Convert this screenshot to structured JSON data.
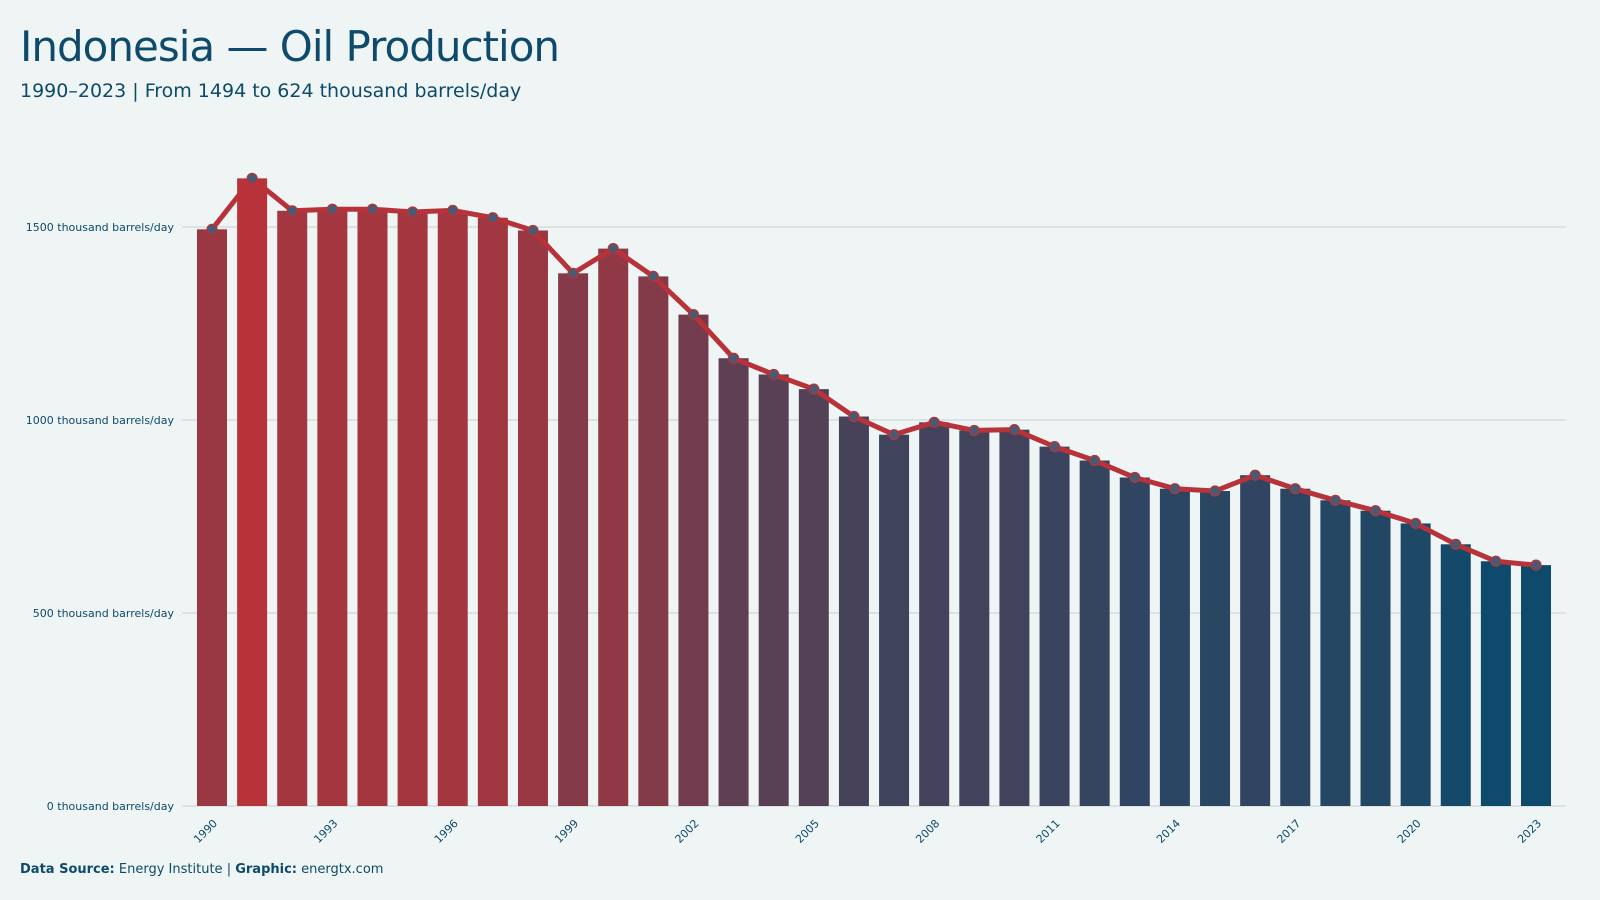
{
  "header": {
    "title": "Indonesia — Oil Production",
    "subtitle": "1990–2023 | From 1494 to 624 thousand barrels/day"
  },
  "footer": {
    "source_label": "Data Source:",
    "source_value": "Energy Institute",
    "separator": "|",
    "graphic_label": "Graphic:",
    "graphic_value": "energtx.com"
  },
  "colors": {
    "background": "#eff5f4",
    "text": "#0d4a6b",
    "line": "#b83339",
    "bar_high": "#b83339",
    "bar_low": "#0d4a6b",
    "marker": "#4a5a72",
    "grid": "#c9cfd2"
  },
  "chart_data": {
    "type": "bar",
    "unit": "thousand barrels/day",
    "x": [
      1990,
      1991,
      1992,
      1993,
      1994,
      1995,
      1996,
      1997,
      1998,
      1999,
      2000,
      2001,
      2002,
      2003,
      2004,
      2005,
      2006,
      2007,
      2008,
      2009,
      2010,
      2011,
      2012,
      2013,
      2014,
      2015,
      2016,
      2017,
      2018,
      2019,
      2020,
      2021,
      2022,
      2023
    ],
    "values": [
      1494,
      1626,
      1542,
      1546,
      1546,
      1539,
      1543,
      1524,
      1491,
      1380,
      1444,
      1372,
      1273,
      1160,
      1118,
      1080,
      1009,
      962,
      994,
      973,
      975,
      931,
      895,
      851,
      822,
      816,
      857,
      822,
      792,
      765,
      732,
      678,
      634,
      624
    ],
    "xticks": [
      "1990",
      "1993",
      "1996",
      "1999",
      "2002",
      "2005",
      "2008",
      "2011",
      "2014",
      "2017",
      "2020",
      "2023"
    ],
    "yticks": [
      {
        "value": 0,
        "label": "0 thousand barrels/day"
      },
      {
        "value": 500,
        "label": "500 thousand barrels/day"
      },
      {
        "value": 1000,
        "label": "1000 thousand barrels/day"
      },
      {
        "value": 1500,
        "label": "1500 thousand barrels/day"
      }
    ],
    "ylim": [
      0,
      1650
    ],
    "grid": true,
    "overlay": "line with markers"
  }
}
